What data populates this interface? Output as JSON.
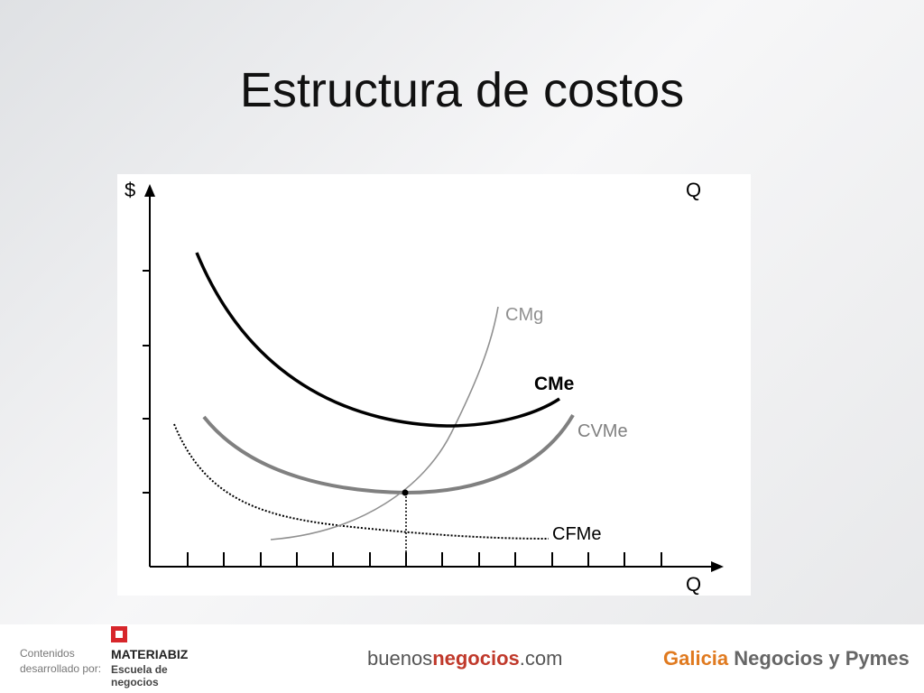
{
  "slide": {
    "title": "Estructura de costos"
  },
  "diagram": {
    "y_axis_label": "$",
    "x_axis_label_top": "Q",
    "x_axis_label": "Q",
    "curves": {
      "cmg": "CMg",
      "cme": "CMe",
      "cvme": "CVMe",
      "cfme": "CFMe"
    }
  },
  "footer": {
    "credit_line1": "Contenidos",
    "credit_line2": "desarrollado por:",
    "brand": "MATERIABIZ",
    "brand_sub1": "Escuela de",
    "brand_sub2": "negocios",
    "site_part1": "buenos",
    "site_part2": "negocios",
    "site_part3": ".com",
    "sponsor_part1": "Galicia",
    "sponsor_part2": "Negocios y Pymes"
  }
}
